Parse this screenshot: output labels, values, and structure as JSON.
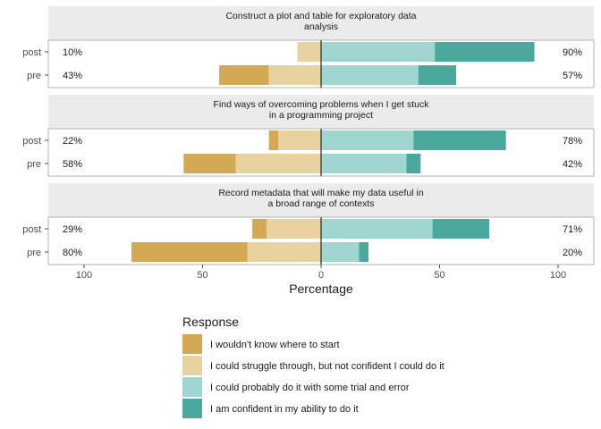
{
  "chart_data": {
    "type": "bar",
    "orientation": "horizontal",
    "stacked": "diverging",
    "xlabel": "Percentage",
    "xlim": [
      -100,
      100
    ],
    "xticks": [
      -100,
      -50,
      0,
      50,
      100
    ],
    "xtick_labels": [
      "100",
      "50",
      "0",
      "50",
      "100"
    ],
    "categories": [
      "post",
      "pre"
    ],
    "legend": {
      "title": "Response",
      "placement": "bottom",
      "items": [
        {
          "label": "I wouldn't know where to start",
          "color": "#d4a956"
        },
        {
          "label": "I could struggle through, but not confident I could do it",
          "color": "#e8d3a0"
        },
        {
          "label": "I could probably do it with some trial and error",
          "color": "#a0d6cf"
        },
        {
          "label": "I am confident in my ability to do it",
          "color": "#4aa99c"
        }
      ]
    },
    "panels": [
      {
        "title_lines": [
          "Construct a plot and table for exploratory data",
          "analysis"
        ],
        "rows": [
          {
            "label": "post",
            "values": [
              0,
              10,
              48,
              42
            ],
            "left_pct": "10%",
            "right_pct": "90%"
          },
          {
            "label": "pre",
            "values": [
              21,
              22,
              41,
              16
            ],
            "left_pct": "43%",
            "right_pct": "57%"
          }
        ]
      },
      {
        "title_lines": [
          "Find ways of overcoming problems when I get stuck",
          "in a programming project"
        ],
        "rows": [
          {
            "label": "post",
            "values": [
              4,
              18,
              39,
              39
            ],
            "left_pct": "22%",
            "right_pct": "78%"
          },
          {
            "label": "pre",
            "values": [
              22,
              36,
              36,
              6
            ],
            "left_pct": "58%",
            "right_pct": "42%"
          }
        ]
      },
      {
        "title_lines": [
          "Record metadata that will make my data useful in",
          "a broad range of contexts"
        ],
        "rows": [
          {
            "label": "post",
            "values": [
              6,
              23,
              47,
              24
            ],
            "left_pct": "29%",
            "right_pct": "71%"
          },
          {
            "label": "pre",
            "values": [
              49,
              31,
              16,
              4
            ],
            "left_pct": "80%",
            "right_pct": "20%"
          }
        ]
      }
    ]
  }
}
